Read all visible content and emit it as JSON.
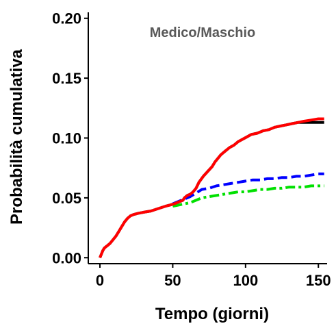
{
  "chart_data": {
    "type": "line",
    "title": "Medico/Maschio",
    "xlabel": "Tempo (giorni)",
    "ylabel": "Probabilità cumulativa",
    "xlim": [
      -8,
      156
    ],
    "ylim": [
      -0.005,
      0.205
    ],
    "x_ticks": [
      0,
      50,
      100,
      150
    ],
    "x_tick_labels": [
      "0",
      "50",
      "100",
      "150"
    ],
    "y_ticks": [
      0.0,
      0.05,
      0.1,
      0.15,
      0.2
    ],
    "y_tick_labels": [
      "0.00",
      "0.05",
      "0.10",
      "0.15",
      "0.20"
    ],
    "grid": false,
    "legend": "none",
    "series": [
      {
        "color": "#000000",
        "style": "solid",
        "x": [
          0,
          1,
          2,
          3,
          4,
          5,
          7,
          9,
          11,
          13,
          15,
          17,
          19,
          21,
          23,
          26,
          30,
          35,
          40,
          45,
          48,
          51,
          53,
          55,
          57,
          58,
          60,
          62,
          64,
          66,
          68,
          71,
          74,
          77,
          79,
          81,
          83,
          86,
          89,
          92,
          95,
          98,
          101,
          104,
          108,
          112,
          116,
          120,
          124,
          128,
          132,
          136,
          140,
          145,
          150,
          154
        ],
        "values": [
          0.0,
          0.003,
          0.006,
          0.008,
          0.009,
          0.01,
          0.012,
          0.015,
          0.018,
          0.022,
          0.026,
          0.03,
          0.033,
          0.035,
          0.036,
          0.037,
          0.038,
          0.039,
          0.041,
          0.043,
          0.044,
          0.045,
          0.046,
          0.047,
          0.048,
          0.05,
          0.052,
          0.053,
          0.055,
          0.058,
          0.063,
          0.068,
          0.072,
          0.076,
          0.08,
          0.083,
          0.086,
          0.089,
          0.092,
          0.094,
          0.097,
          0.099,
          0.101,
          0.103,
          0.104,
          0.106,
          0.107,
          0.109,
          0.11,
          0.111,
          0.112,
          0.113,
          0.113,
          0.113,
          0.113,
          0.113
        ]
      },
      {
        "color": "#0000ff",
        "style": "dashed",
        "x": [
          50,
          54,
          58,
          62,
          66,
          70,
          75,
          80,
          85,
          90,
          95,
          100,
          105,
          110,
          115,
          120,
          125,
          130,
          135,
          140,
          145,
          150,
          154
        ],
        "values": [
          0.045,
          0.047,
          0.049,
          0.051,
          0.054,
          0.057,
          0.058,
          0.06,
          0.061,
          0.062,
          0.063,
          0.064,
          0.065,
          0.065,
          0.066,
          0.066,
          0.067,
          0.067,
          0.068,
          0.068,
          0.069,
          0.07,
          0.07
        ]
      },
      {
        "color": "#00e000",
        "style": "dashdot",
        "x": [
          50,
          54,
          58,
          62,
          66,
          70,
          75,
          80,
          85,
          90,
          95,
          100,
          105,
          110,
          115,
          120,
          125,
          130,
          135,
          140,
          145,
          150,
          154
        ],
        "values": [
          0.043,
          0.044,
          0.045,
          0.046,
          0.048,
          0.05,
          0.051,
          0.052,
          0.053,
          0.054,
          0.055,
          0.055,
          0.056,
          0.057,
          0.057,
          0.058,
          0.058,
          0.059,
          0.059,
          0.059,
          0.06,
          0.06,
          0.06
        ]
      },
      {
        "color": "#ff0000",
        "style": "solid",
        "x": [
          0,
          1,
          2,
          3,
          4,
          5,
          7,
          9,
          11,
          13,
          15,
          17,
          19,
          21,
          23,
          26,
          30,
          35,
          40,
          45,
          48,
          51,
          53,
          55,
          57,
          58,
          60,
          62,
          64,
          66,
          68,
          71,
          74,
          77,
          79,
          81,
          83,
          86,
          89,
          92,
          95,
          98,
          101,
          104,
          108,
          112,
          116,
          120,
          124,
          128,
          132,
          136,
          140,
          145,
          150,
          154
        ],
        "values": [
          0.0,
          0.003,
          0.006,
          0.008,
          0.009,
          0.01,
          0.012,
          0.015,
          0.018,
          0.022,
          0.026,
          0.03,
          0.033,
          0.035,
          0.036,
          0.037,
          0.038,
          0.039,
          0.041,
          0.043,
          0.044,
          0.045,
          0.046,
          0.047,
          0.048,
          0.05,
          0.052,
          0.053,
          0.055,
          0.058,
          0.063,
          0.068,
          0.072,
          0.076,
          0.08,
          0.083,
          0.086,
          0.089,
          0.092,
          0.094,
          0.097,
          0.099,
          0.101,
          0.103,
          0.104,
          0.106,
          0.107,
          0.109,
          0.11,
          0.111,
          0.112,
          0.113,
          0.114,
          0.115,
          0.116,
          0.116
        ]
      }
    ]
  }
}
